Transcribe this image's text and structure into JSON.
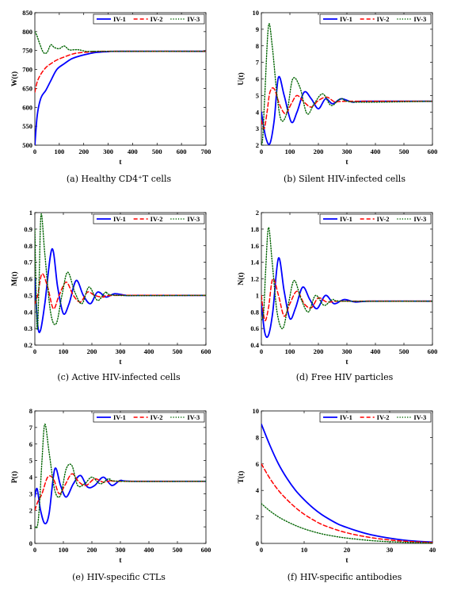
{
  "legend_labels": [
    "IV-1",
    "IV-2",
    "IV-3"
  ],
  "series_colors": [
    "#0000ff",
    "#ff0000",
    "#006400"
  ],
  "series_styles": [
    "solid",
    "dashed",
    "dotted"
  ],
  "chart_data": [
    {
      "type": "line",
      "caption": "(a)  Healthy CD4⁺T cells",
      "xlabel": "t",
      "ylabel": "W(t)",
      "xlim": [
        0,
        700
      ],
      "ylim": [
        500,
        850
      ],
      "xticks": [
        0,
        100,
        200,
        300,
        400,
        500,
        600,
        700
      ],
      "yticks": [
        500,
        550,
        600,
        650,
        700,
        750,
        800,
        850
      ],
      "legend": "top-right",
      "series": [
        {
          "name": "IV-1",
          "x": [
            0,
            10,
            25,
            45,
            65,
            90,
            120,
            150,
            180,
            210,
            250,
            300,
            350,
            700
          ],
          "y": [
            500,
            580,
            625,
            645,
            670,
            700,
            715,
            728,
            735,
            740,
            745,
            747,
            748,
            748
          ]
        },
        {
          "name": "IV-2",
          "x": [
            0,
            10,
            25,
            45,
            65,
            90,
            120,
            150,
            180,
            220,
            260,
            300,
            700
          ],
          "y": [
            640,
            668,
            688,
            705,
            715,
            725,
            733,
            740,
            744,
            746,
            748,
            748,
            748
          ]
        },
        {
          "name": "IV-3",
          "x": [
            0,
            8,
            20,
            35,
            50,
            65,
            80,
            100,
            120,
            140,
            160,
            180,
            210,
            240,
            280,
            700
          ],
          "y": [
            800,
            790,
            768,
            745,
            745,
            765,
            758,
            755,
            762,
            752,
            752,
            752,
            748,
            748,
            748,
            748
          ]
        }
      ]
    },
    {
      "type": "line",
      "caption": "(b)  Silent HIV-infected cells",
      "xlabel": "t",
      "ylabel": "U(t)",
      "xlim": [
        0,
        600
      ],
      "ylim": [
        2,
        10
      ],
      "xticks": [
        0,
        100,
        200,
        300,
        400,
        500,
        600
      ],
      "yticks": [
        2,
        3,
        4,
        5,
        6,
        7,
        8,
        9,
        10
      ],
      "legend": "top-right",
      "series": [
        {
          "name": "IV-1",
          "x": [
            0,
            15,
            30,
            45,
            60,
            80,
            105,
            125,
            150,
            175,
            200,
            225,
            250,
            280,
            320,
            360,
            600
          ],
          "y": [
            4,
            2.5,
            2.1,
            3.5,
            6.1,
            5.0,
            3.4,
            4.0,
            5.2,
            4.8,
            4.2,
            4.8,
            4.5,
            4.8,
            4.6,
            4.65,
            4.65
          ]
        },
        {
          "name": "IV-2",
          "x": [
            0,
            10,
            20,
            30,
            45,
            65,
            85,
            105,
            125,
            150,
            175,
            200,
            230,
            260,
            300,
            600
          ],
          "y": [
            3.5,
            3.0,
            4.0,
            5.2,
            5.4,
            4.4,
            3.9,
            4.5,
            5.0,
            4.6,
            4.3,
            4.7,
            4.9,
            4.6,
            4.65,
            4.65
          ]
        },
        {
          "name": "IV-3",
          "x": [
            0,
            5,
            12,
            25,
            38,
            55,
            70,
            90,
            110,
            135,
            160,
            185,
            215,
            245,
            280,
            330,
            600
          ],
          "y": [
            2.0,
            2.5,
            5.0,
            9.2,
            8.0,
            5.0,
            3.5,
            4.0,
            6.0,
            5.5,
            3.9,
            4.5,
            5.1,
            4.4,
            4.8,
            4.6,
            4.65
          ]
        }
      ]
    },
    {
      "type": "line",
      "caption": "(c)  Active HIV-infected cells",
      "xlabel": "t",
      "ylabel": "M(t)",
      "xlim": [
        0,
        600
      ],
      "ylim": [
        0.2,
        1
      ],
      "xticks": [
        0,
        100,
        200,
        300,
        400,
        500,
        600
      ],
      "yticks": [
        0.2,
        0.3,
        0.4,
        0.5,
        0.6,
        0.7,
        0.8,
        0.9,
        1
      ],
      "legend": "top-right",
      "series": [
        {
          "name": "IV-1",
          "x": [
            0,
            10,
            20,
            35,
            60,
            80,
            100,
            120,
            145,
            170,
            195,
            220,
            250,
            280,
            320,
            360,
            600
          ],
          "y": [
            0.6,
            0.32,
            0.29,
            0.45,
            0.78,
            0.55,
            0.39,
            0.45,
            0.59,
            0.5,
            0.45,
            0.52,
            0.49,
            0.51,
            0.5,
            0.5,
            0.5
          ]
        },
        {
          "name": "IV-2",
          "x": [
            0,
            10,
            25,
            45,
            65,
            85,
            110,
            135,
            160,
            185,
            210,
            240,
            280,
            600
          ],
          "y": [
            0.45,
            0.5,
            0.63,
            0.55,
            0.42,
            0.5,
            0.58,
            0.5,
            0.46,
            0.52,
            0.5,
            0.49,
            0.5,
            0.5
          ]
        },
        {
          "name": "IV-3",
          "x": [
            0,
            8,
            15,
            22,
            35,
            55,
            75,
            95,
            115,
            140,
            165,
            190,
            220,
            250,
            290,
            600
          ],
          "y": [
            0.9,
            0.3,
            0.6,
            0.99,
            0.75,
            0.4,
            0.33,
            0.5,
            0.64,
            0.52,
            0.45,
            0.55,
            0.47,
            0.52,
            0.5,
            0.5
          ]
        }
      ]
    },
    {
      "type": "line",
      "caption": "(d)  Free HIV particles",
      "xlabel": "t",
      "ylabel": "N(t)",
      "xlim": [
        0,
        600
      ],
      "ylim": [
        0.4,
        2
      ],
      "xticks": [
        0,
        100,
        200,
        300,
        400,
        500,
        600
      ],
      "yticks": [
        0.4,
        0.6,
        0.8,
        1,
        1.2,
        1.4,
        1.6,
        1.8,
        2
      ],
      "legend": "top-right",
      "series": [
        {
          "name": "IV-1",
          "x": [
            0,
            12,
            25,
            40,
            60,
            80,
            100,
            120,
            145,
            170,
            195,
            225,
            255,
            290,
            330,
            380,
            600
          ],
          "y": [
            0.9,
            0.55,
            0.52,
            0.8,
            1.45,
            1.05,
            0.72,
            0.85,
            1.1,
            0.95,
            0.84,
            1.0,
            0.9,
            0.95,
            0.92,
            0.93,
            0.93
          ]
        },
        {
          "name": "IV-2",
          "x": [
            0,
            12,
            25,
            40,
            60,
            80,
            100,
            125,
            150,
            175,
            200,
            230,
            265,
            300,
            600
          ],
          "y": [
            1.0,
            0.7,
            0.85,
            1.2,
            1.0,
            0.75,
            0.9,
            1.05,
            0.9,
            0.85,
            0.97,
            0.92,
            0.93,
            0.93,
            0.93
          ]
        },
        {
          "name": "IV-3",
          "x": [
            0,
            8,
            15,
            25,
            38,
            55,
            75,
            95,
            115,
            140,
            165,
            190,
            220,
            250,
            290,
            600
          ],
          "y": [
            0.7,
            0.8,
            1.3,
            1.82,
            1.4,
            0.8,
            0.6,
            0.9,
            1.18,
            0.95,
            0.8,
            1.0,
            0.88,
            0.95,
            0.93,
            0.93
          ]
        }
      ]
    },
    {
      "type": "line",
      "caption": "(e)  HIV-specific CTLs",
      "xlabel": "t",
      "ylabel": "P(t)",
      "xlim": [
        0,
        600
      ],
      "ylim": [
        0,
        8
      ],
      "xticks": [
        0,
        100,
        200,
        300,
        400,
        500,
        600
      ],
      "yticks": [
        0,
        1,
        2,
        3,
        4,
        5,
        6,
        7,
        8
      ],
      "legend": "top-right",
      "series": [
        {
          "name": "IV-1",
          "x": [
            0,
            8,
            20,
            35,
            50,
            70,
            90,
            110,
            135,
            160,
            185,
            210,
            240,
            270,
            300,
            340,
            600
          ],
          "y": [
            2.8,
            3.3,
            2.0,
            1.2,
            1.8,
            4.5,
            3.5,
            2.8,
            3.6,
            4.1,
            3.4,
            3.5,
            4.0,
            3.5,
            3.8,
            3.75,
            3.75
          ]
        },
        {
          "name": "IV-2",
          "x": [
            0,
            10,
            25,
            45,
            65,
            85,
            105,
            130,
            155,
            180,
            210,
            240,
            270,
            300,
            600
          ],
          "y": [
            2.0,
            2.5,
            3.0,
            4.0,
            3.9,
            3.0,
            3.5,
            4.2,
            3.7,
            3.5,
            3.9,
            3.7,
            3.8,
            3.75,
            3.75
          ]
        },
        {
          "name": "IV-3",
          "x": [
            0,
            8,
            15,
            25,
            35,
            50,
            70,
            90,
            110,
            130,
            150,
            175,
            200,
            230,
            260,
            300,
            600
          ],
          "y": [
            1.0,
            1.0,
            2.0,
            5.0,
            7.2,
            5.5,
            3.2,
            2.9,
            4.5,
            4.7,
            3.5,
            3.6,
            4.0,
            3.6,
            3.9,
            3.75,
            3.75
          ]
        }
      ]
    },
    {
      "type": "line",
      "caption": "(f)  HIV-specific antibodies",
      "xlabel": "t",
      "ylabel": "T(t)",
      "xlim": [
        0,
        40
      ],
      "ylim": [
        0,
        10
      ],
      "xticks": [
        0,
        10,
        20,
        30,
        40
      ],
      "yticks": [
        0,
        2,
        4,
        6,
        8,
        10
      ],
      "legend": "top-right",
      "series": [
        {
          "name": "IV-1",
          "x": [
            0,
            2,
            4,
            6,
            8,
            10,
            12,
            14,
            16,
            18,
            20,
            22,
            25,
            28,
            32,
            36,
            40
          ],
          "y": [
            9.0,
            7.4,
            6.0,
            4.9,
            4.0,
            3.3,
            2.7,
            2.2,
            1.8,
            1.45,
            1.2,
            0.98,
            0.7,
            0.5,
            0.3,
            0.17,
            0.1
          ]
        },
        {
          "name": "IV-2",
          "x": [
            0,
            2,
            4,
            6,
            8,
            10,
            12,
            14,
            16,
            18,
            20,
            22,
            25,
            28,
            32,
            36,
            40
          ],
          "y": [
            6.0,
            4.9,
            4.0,
            3.3,
            2.7,
            2.2,
            1.8,
            1.45,
            1.2,
            0.98,
            0.8,
            0.65,
            0.47,
            0.33,
            0.2,
            0.12,
            0.07
          ]
        },
        {
          "name": "IV-3",
          "x": [
            0,
            2,
            4,
            6,
            8,
            10,
            12,
            14,
            16,
            18,
            20,
            22,
            25,
            28,
            32,
            36,
            40
          ],
          "y": [
            3.0,
            2.45,
            2.0,
            1.65,
            1.35,
            1.1,
            0.9,
            0.73,
            0.6,
            0.49,
            0.4,
            0.33,
            0.23,
            0.16,
            0.1,
            0.06,
            0.03
          ]
        }
      ]
    }
  ]
}
